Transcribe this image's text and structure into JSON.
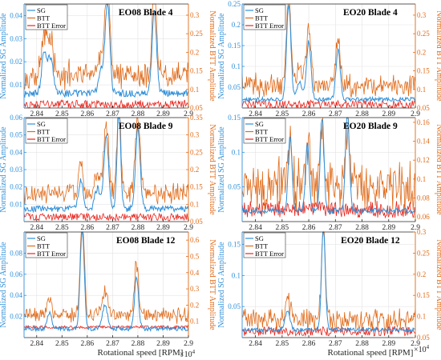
{
  "figure": {
    "xlabel": "Rotational speed [RPM]",
    "x_multiplier_base": "×10",
    "x_multiplier_exp": "4"
  },
  "colors": {
    "sg": "#2f8fd8",
    "btt": "#e06a18",
    "err": "#e8241c",
    "axis": "#262626",
    "grid": "#e3e3e3"
  },
  "chart_data": [
    {
      "type": "line",
      "title": "EO08 Blade 4",
      "ylabel_left": "Normalized SG Amplitude",
      "ylabel_right": "Normalized BTT Amplitude",
      "xlim": [
        28350,
        29000
      ],
      "xticks": [
        28400,
        28500,
        28600,
        28700,
        28800,
        28900,
        29000
      ],
      "xtick_labels": [
        "2.84",
        "2.85",
        "2.86",
        "2.87",
        "2.88",
        "2.89",
        "2.9"
      ],
      "ylim_left": [
        0,
        0.045
      ],
      "yticks_left": [
        0.01,
        0.02,
        0.03,
        0.04
      ],
      "ylim_right": [
        0.05,
        0.33
      ],
      "yticks_right": [
        0.05,
        0.1,
        0.15,
        0.2,
        0.25,
        0.3
      ],
      "legend": [
        "SG",
        "BTT",
        "BTT Error"
      ],
      "peaks": [
        [
          28430,
          0.018,
          10
        ],
        [
          28455,
          0.015,
          10
        ],
        [
          28680,
          0.04,
          9
        ],
        [
          28865,
          0.035,
          9
        ],
        [
          28655,
          0.01,
          10
        ]
      ],
      "sg_base": 0.006,
      "btt_base": 0.1,
      "btt_noise": 0.02,
      "btt_scale": 1.0,
      "err_base": 0.06,
      "err_noise": 0.01
    },
    {
      "type": "line",
      "title": "EO20 Blade 4",
      "ylabel_left": "Normalized SG Amplitude",
      "ylabel_right": "Normalized BTT Amplitude",
      "xlim": [
        28350,
        29000
      ],
      "xticks": [
        28400,
        28500,
        28600,
        28700,
        28800,
        28900,
        29000
      ],
      "xtick_labels": [
        "2.84",
        "2.85",
        "2.86",
        "2.87",
        "2.88",
        "2.89",
        "2.9"
      ],
      "ylim_left": [
        0,
        0.25
      ],
      "yticks_left": [
        0.05,
        0.1,
        0.15,
        0.2,
        0.25
      ],
      "ylim_right": [
        0.05,
        0.33
      ],
      "yticks_right": [
        0.05,
        0.1,
        0.15,
        0.2,
        0.25,
        0.3
      ],
      "legend": [
        "SG",
        "BTT",
        "BTT Error"
      ],
      "peaks": [
        [
          28525,
          0.23,
          8
        ],
        [
          28600,
          0.14,
          8
        ],
        [
          28710,
          0.12,
          8
        ],
        [
          28565,
          0.04,
          10
        ]
      ],
      "sg_base": 0.02,
      "btt_base": 0.09,
      "btt_noise": 0.02,
      "btt_scale": 1.0,
      "err_base": 0.06,
      "err_noise": 0.01
    },
    {
      "type": "line",
      "title": "EO08 Blade 9",
      "ylabel_left": "Normalized SG Amplitude",
      "ylabel_right": "Normalized BTT Amplitude",
      "xlim": [
        28350,
        29000
      ],
      "xticks": [
        28400,
        28500,
        28600,
        28700,
        28800,
        28900,
        29000
      ],
      "xtick_labels": [
        "2.84",
        "2.85",
        "2.86",
        "2.87",
        "2.88",
        "2.89",
        "2.9"
      ],
      "ylim_left": [
        0,
        0.06
      ],
      "yticks_left": [
        0.01,
        0.02,
        0.03,
        0.04,
        0.05,
        0.06
      ],
      "ylim_right": [
        0.05,
        0.35
      ],
      "yticks_right": [
        0.05,
        0.1,
        0.15,
        0.2,
        0.25,
        0.3,
        0.35
      ],
      "legend": [
        "SG",
        "BTT",
        "BTT Error"
      ],
      "peaks": [
        [
          28575,
          0.017,
          9
        ],
        [
          28675,
          0.042,
          9
        ],
        [
          28725,
          0.058,
          7
        ],
        [
          28800,
          0.046,
          9
        ],
        [
          28640,
          0.012,
          10
        ]
      ],
      "sg_base": 0.007,
      "btt_base": 0.095,
      "btt_noise": 0.02,
      "btt_scale": 1.0,
      "err_base": 0.063,
      "err_noise": 0.01
    },
    {
      "type": "line",
      "title": "EO20 Blade 9",
      "ylabel_left": "Normalized SG Amplitude",
      "ylabel_right": "Normalized BTT Amplitude",
      "xlim": [
        28350,
        29000
      ],
      "xticks": [
        28400,
        28500,
        28600,
        28700,
        28800,
        28900,
        29000
      ],
      "xtick_labels": [
        "2.84",
        "2.85",
        "2.86",
        "2.87",
        "2.88",
        "2.89",
        "2.9"
      ],
      "ylim_left": [
        0,
        0.15
      ],
      "yticks_left": [
        0.05,
        0.1,
        0.15
      ],
      "ylim_right": [
        0.055,
        0.165
      ],
      "yticks_right": [
        0.06,
        0.08,
        0.1,
        0.12,
        0.14,
        0.16
      ],
      "legend": [
        "SG",
        "BTT",
        "BTT Error"
      ],
      "peaks": [
        [
          28530,
          0.11,
          7
        ],
        [
          28595,
          0.1,
          7
        ],
        [
          28650,
          0.135,
          7
        ],
        [
          28745,
          0.15,
          7
        ]
      ],
      "sg_base": 0.015,
      "btt_base": 0.085,
      "btt_noise": 0.02,
      "btt_scale": 0.7,
      "err_base": 0.068,
      "err_noise": 0.008
    },
    {
      "type": "line",
      "title": "EO08 Blade 12",
      "ylabel_left": "Normalized SG Amplitude",
      "ylabel_right": "Normalized BTT Amplitude",
      "xlim": [
        28350,
        29000
      ],
      "xticks": [
        28400,
        28500,
        28600,
        28700,
        28800,
        28900,
        29000
      ],
      "xtick_labels": [
        "2.84",
        "2.85",
        "2.86",
        "2.87",
        "2.88",
        "2.89",
        "2.9"
      ],
      "ylim_left": [
        0,
        0.1
      ],
      "yticks_left": [
        0.02,
        0.04,
        0.06,
        0.08
      ],
      "ylim_right": [
        0,
        0.65
      ],
      "yticks_right": [
        0.1,
        0.2,
        0.3,
        0.4,
        0.5,
        0.6
      ],
      "legend": [
        "SG",
        "BTT",
        "BTT Error"
      ],
      "peaks": [
        [
          28450,
          0.015,
          9
        ],
        [
          28580,
          0.095,
          8
        ],
        [
          28670,
          0.022,
          10
        ],
        [
          28795,
          0.05,
          8
        ]
      ],
      "sg_base": 0.008,
      "btt_base": 0.09,
      "btt_noise": 0.015,
      "btt_scale": 1.0,
      "err_base": 0.065,
      "err_noise": 0.008
    },
    {
      "type": "line",
      "title": "EO20 Blade 12",
      "ylabel_left": "Normalized SG Amplitude",
      "ylabel_right": "Normalized BTT Amplitude",
      "xlim": [
        28350,
        29000
      ],
      "xticks": [
        28400,
        28500,
        28600,
        28700,
        28800,
        28900,
        29000
      ],
      "xtick_labels": [
        "2.84",
        "2.85",
        "2.86",
        "2.87",
        "2.88",
        "2.89",
        "2.9"
      ],
      "ylim_left": [
        0,
        0.17
      ],
      "yticks_left": [
        0.05,
        0.1,
        0.15
      ],
      "ylim_right": [
        0.05,
        0.3
      ],
      "yticks_right": [
        0.05,
        0.1,
        0.15,
        0.2,
        0.25,
        0.3
      ],
      "legend": [
        "SG",
        "BTT",
        "BTT Error"
      ],
      "peaks": [
        [
          28520,
          0.03,
          9
        ],
        [
          28655,
          0.165,
          7
        ]
      ],
      "sg_base": 0.012,
      "btt_base": 0.075,
      "btt_noise": 0.02,
      "btt_scale": 1.0,
      "err_base": 0.065,
      "err_noise": 0.01
    }
  ]
}
